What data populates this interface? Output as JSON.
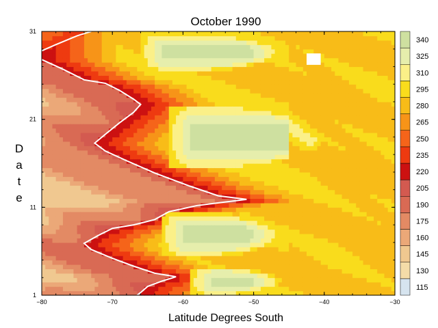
{
  "chart_data": {
    "type": "heatmap",
    "title": "October 1990",
    "xlabel": "Latitude Degrees South",
    "ylabel": "Date",
    "xlim": [
      -80,
      -30
    ],
    "ylim": [
      1,
      31
    ],
    "x_ticks": [
      -80,
      -70,
      -60,
      -50,
      -40,
      -30
    ],
    "x_tick_labels": [
      "−80",
      "−70",
      "−60",
      "−50",
      "−40",
      "−30"
    ],
    "y_ticks": [
      1,
      11,
      21,
      31
    ],
    "y_tick_labels": [
      "1",
      "11",
      "21",
      "31"
    ],
    "colorbar": {
      "levels": [
        115,
        130,
        145,
        160,
        175,
        190,
        205,
        220,
        235,
        250,
        265,
        280,
        295,
        310,
        325,
        340
      ],
      "labels": [
        "115",
        "130",
        "145",
        "160",
        "175",
        "190",
        "205",
        "220",
        "235",
        "250",
        "265",
        "280",
        "295",
        "310",
        "325",
        "340"
      ],
      "colors": [
        "#d6e4ef",
        "#f4dca8",
        "#f0c890",
        "#eba878",
        "#e38a64",
        "#d96a54",
        "#d35a50",
        "#cc1111",
        "#ee3a10",
        "#f5641a",
        "#f79418",
        "#f8bc18",
        "#f9dc1c",
        "#fbf088",
        "#e6eeac",
        "#cee0a0"
      ]
    },
    "contour_220_line": [
      {
        "x": -80,
        "y": 28.8
      },
      {
        "x": -78,
        "y": 29.5
      },
      {
        "x": -75,
        "y": 30.5
      },
      {
        "x": -73,
        "y": 31
      }
    ],
    "contour_220_line_2": [
      {
        "x": -80,
        "y": 27.8
      },
      {
        "x": -77,
        "y": 26.7
      },
      {
        "x": -74,
        "y": 25.5
      },
      {
        "x": -71,
        "y": 25.1
      },
      {
        "x": -69,
        "y": 24.3
      },
      {
        "x": -67,
        "y": 23.3
      },
      {
        "x": -66,
        "y": 22.7
      },
      {
        "x": -67,
        "y": 21.8
      },
      {
        "x": -69,
        "y": 20.6
      },
      {
        "x": -71,
        "y": 19.3
      },
      {
        "x": -72.5,
        "y": 18.3
      },
      {
        "x": -71,
        "y": 17.4
      },
      {
        "x": -68,
        "y": 16.3
      },
      {
        "x": -64,
        "y": 14.9
      },
      {
        "x": -59,
        "y": 13.4
      },
      {
        "x": -55,
        "y": 12.3
      },
      {
        "x": -51,
        "y": 11.9
      },
      {
        "x": -55,
        "y": 11.5
      },
      {
        "x": -58,
        "y": 11.2
      },
      {
        "x": -62,
        "y": 10.5
      },
      {
        "x": -64,
        "y": 9.6
      },
      {
        "x": -67,
        "y": 9.0
      },
      {
        "x": -70,
        "y": 8.6
      },
      {
        "x": -72,
        "y": 7.8
      },
      {
        "x": -74,
        "y": 6.9
      },
      {
        "x": -73,
        "y": 6.2
      },
      {
        "x": -70,
        "y": 5.2
      },
      {
        "x": -67,
        "y": 4.3
      },
      {
        "x": -64,
        "y": 3.5
      },
      {
        "x": -61,
        "y": 3.1
      },
      {
        "x": -63,
        "y": 2.6
      },
      {
        "x": -65,
        "y": 2.0
      },
      {
        "x": -66,
        "y": 1.3
      },
      {
        "x": -66.5,
        "y": 1
      }
    ],
    "cold_tongues": [
      {
        "y_range": [
          26.5,
          30.8
        ],
        "x_start": -66,
        "x_end": -46,
        "value": 340
      },
      {
        "y_range": [
          15.4,
          22.6
        ],
        "x_start": -62,
        "x_end": -40,
        "value": 340
      },
      {
        "y_range": [
          5.4,
          10.4
        ],
        "x_start": -63,
        "x_end": -46,
        "value": 340
      },
      {
        "y_range": [
          1.0,
          4.2
        ],
        "x_start": -59,
        "x_end": -46,
        "value": 340
      }
    ],
    "missing_data": [
      {
        "x": [
          -42.5,
          -40.5
        ],
        "y": [
          27.2,
          28.5
        ]
      }
    ]
  }
}
